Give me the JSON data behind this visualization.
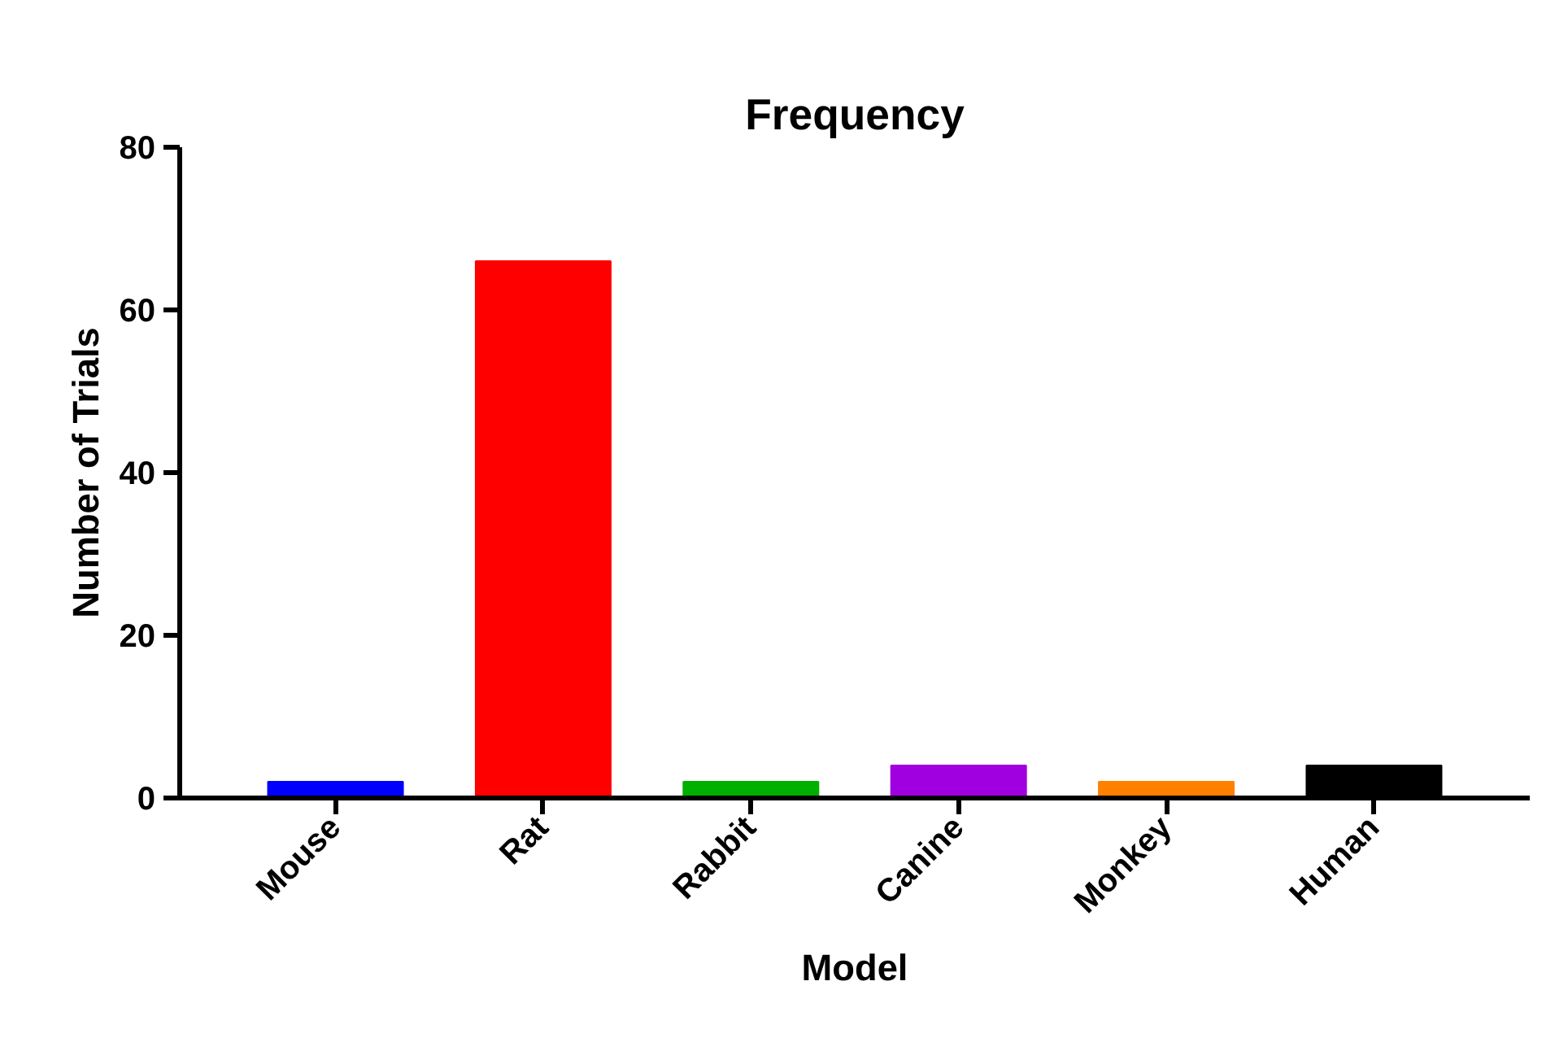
{
  "chart_data": {
    "type": "bar",
    "title": "Frequency",
    "xlabel": "Model",
    "ylabel": "Number of Trials",
    "categories": [
      "Mouse",
      "Rat",
      "Rabbit",
      "Canine",
      "Monkey",
      "Human"
    ],
    "values": [
      2,
      66,
      2,
      4,
      2,
      4
    ],
    "colors": [
      "#0000ff",
      "#ff0000",
      "#00b000",
      "#a000e0",
      "#ff8000",
      "#000000"
    ],
    "ylim": [
      0,
      80
    ],
    "yticks": [
      0,
      20,
      40,
      60,
      80
    ],
    "grid": false
  }
}
